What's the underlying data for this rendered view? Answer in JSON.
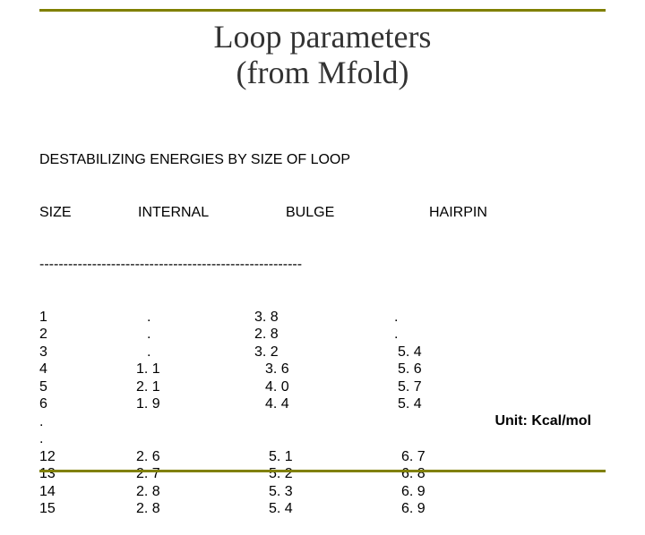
{
  "colors": {
    "rule": "#808000",
    "title": "#333333",
    "text": "#000000",
    "background": "#ffffff"
  },
  "title": {
    "line1": "Loop parameters",
    "line2": "(from Mfold)",
    "fontsize": 36,
    "font_family": "Times New Roman"
  },
  "table": {
    "caption": "DESTABILIZING ENERGIES BY SIZE OF LOOP",
    "columns": [
      "SIZE",
      "INTERNAL",
      "BULGE",
      "HAIRPIN"
    ],
    "divider": "-------------------------------------------------------",
    "rows": [
      {
        "size": "1",
        "internal": ".",
        "bulge": "3. 8",
        "hairpin": "."
      },
      {
        "size": "2",
        "internal": ".",
        "bulge": "2. 8",
        "hairpin": "."
      },
      {
        "size": "3",
        "internal": ".",
        "bulge": "3. 2",
        "hairpin": "5. 4"
      },
      {
        "size": "4",
        "internal": "1. 1",
        "bulge": "3. 6",
        "hairpin": "5. 6"
      },
      {
        "size": "5",
        "internal": "2. 1",
        "bulge": "4. 0",
        "hairpin": "5. 7"
      },
      {
        "size": "6",
        "internal": "1. 9",
        "bulge": "4. 4",
        "hairpin": "5. 4"
      },
      {
        "size": ".",
        "internal": "",
        "bulge": "",
        "hairpin": ""
      },
      {
        "size": ".",
        "internal": "",
        "bulge": "",
        "hairpin": ""
      },
      {
        "size": "12",
        "internal": "2. 6",
        "bulge": "5. 1",
        "hairpin": "6. 7"
      },
      {
        "size": "13",
        "internal": "2. 7",
        "bulge": "5. 2",
        "hairpin": "6. 8"
      },
      {
        "size": "14",
        "internal": "2. 8",
        "bulge": "5. 3",
        "hairpin": "6. 9"
      },
      {
        "size": "15",
        "internal": "2. 8",
        "bulge": "5. 4",
        "hairpin": "6. 9"
      }
    ],
    "body_fontsize": 16
  },
  "unit_label": "Unit: Kcal/mol"
}
